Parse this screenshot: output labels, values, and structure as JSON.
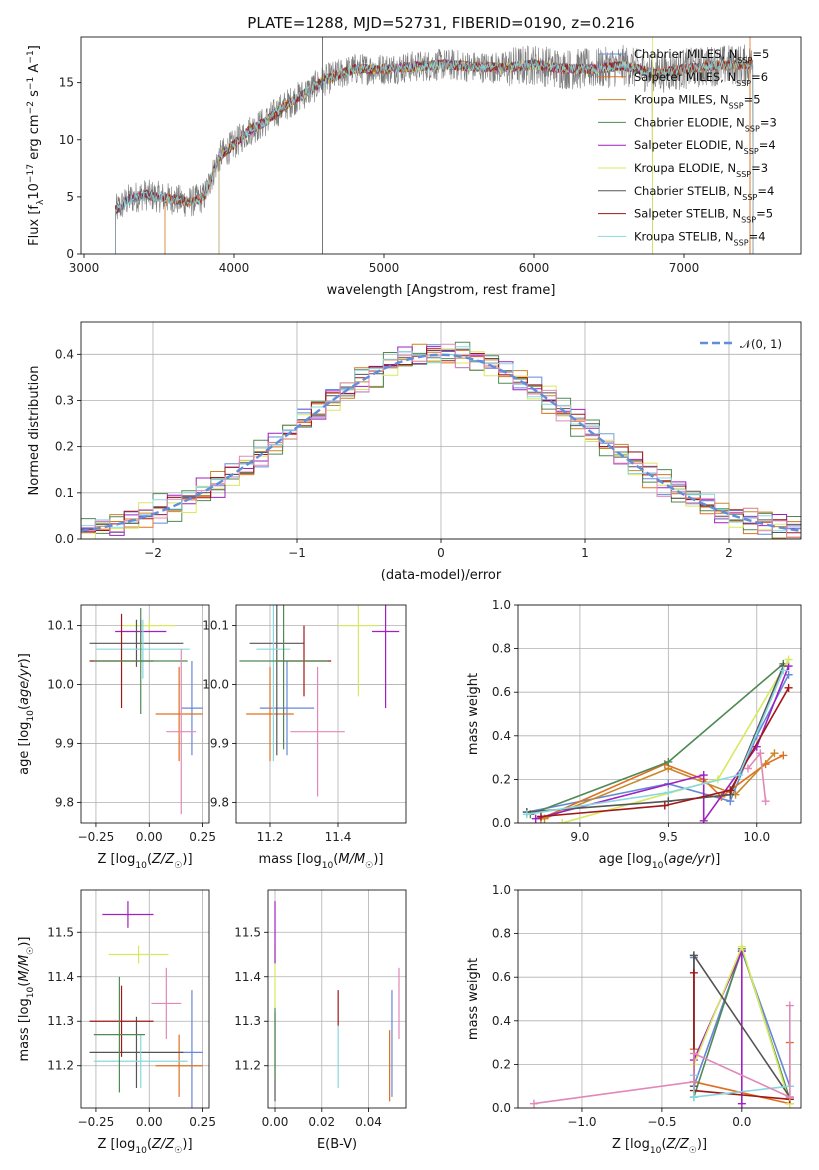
{
  "chart_data": [
    {
      "id": "spectrum",
      "type": "line",
      "title": "PLATE=1288, MJD=52731, FIBERID=0190, z=0.216",
      "xlabel": "wavelength [Angstrom, rest frame]",
      "ylabel": "Flux [f_λ 10^-17 erg cm^-2 s^-1 A^-1]",
      "xlim": [
        2980,
        7780
      ],
      "ylim": [
        0,
        19
      ],
      "xticks": [
        3000,
        4000,
        5000,
        6000,
        7000
      ],
      "yticks": [
        0,
        5,
        10,
        15
      ],
      "legend_position": "upper-right",
      "grid": false,
      "series": [
        {
          "name": "Chabrier MILES, N_SSP=5",
          "color": "#6688d8",
          "start": 3210,
          "end": 7460
        },
        {
          "name": "Salpeter MILES, N_SSP=6",
          "color": "#e07020",
          "start": 3540,
          "end": 7440
        },
        {
          "name": "Kroupa MILES, N_SSP=5",
          "color": "#c8882a",
          "start": 3540,
          "end": 7440
        },
        {
          "name": "Chabrier ELODIE, N_SSP=3",
          "color": "#4f8a55",
          "start": 3900,
          "end": 6790
        },
        {
          "name": "Salpeter ELODIE, N_SSP=4",
          "color": "#a020c0",
          "start": 3900,
          "end": 6790
        },
        {
          "name": "Kroupa ELODIE, N_SSP=3",
          "color": "#d8e860",
          "start": 3900,
          "end": 6790
        },
        {
          "name": "Chabrier STELIB, N_SSP=4",
          "color": "#555555",
          "start": 3210,
          "end": 7460
        },
        {
          "name": "Salpeter STELIB, N_SSP=5",
          "color": "#a01818",
          "start": 3210,
          "end": 7460
        },
        {
          "name": "Kroupa STELIB, N_SSP=4",
          "color": "#88d8e0",
          "start": 3210,
          "end": 7460
        }
      ],
      "continuum_points": {
        "x": [
          3210,
          3300,
          3400,
          3500,
          3600,
          3700,
          3800,
          3900,
          4000,
          4100,
          4200,
          4300,
          4400,
          4500,
          4600,
          4700,
          4800,
          5000,
          5200,
          5400,
          5600,
          5800,
          6000,
          6200,
          6400,
          6600,
          6800,
          7000,
          7200,
          7460
        ],
        "y": [
          3.8,
          4.8,
          5.2,
          5.0,
          4.8,
          4.5,
          5.0,
          8.5,
          9.6,
          10.8,
          11.5,
          12.6,
          13.5,
          14.3,
          15.2,
          15.7,
          16.2,
          16.2,
          16.4,
          16.6,
          16.4,
          16.3,
          16.6,
          16.2,
          16.2,
          16.5,
          15.8,
          16.2,
          16.5,
          16.6
        ]
      },
      "observed_noise": 1.4
    },
    {
      "id": "residuals",
      "type": "bar",
      "xlabel": "(data-model)/error",
      "ylabel": "Normed distribution",
      "xlim": [
        -2.5,
        2.5
      ],
      "ylim": [
        0,
        0.47
      ],
      "xticks": [
        -2,
        -1,
        0,
        1,
        2
      ],
      "yticks": [
        0.0,
        0.1,
        0.2,
        0.3,
        0.4
      ],
      "grid": true,
      "legend_position": "upper-right",
      "legend_label": "N(0,1)",
      "bin_width": 0.1,
      "reference_curve": {
        "color": "#5f8edb",
        "mean": 0,
        "sigma": 1
      },
      "hist_series": [
        {
          "color": "#6688d8",
          "jitter": [
            0.0,
            0.01,
            -0.01,
            0.02,
            0.0,
            -0.02,
            0.01
          ]
        },
        {
          "color": "#e07020",
          "jitter": [
            0.01,
            -0.01,
            0.0,
            0.01,
            -0.02,
            0.02,
            0.0
          ]
        },
        {
          "color": "#c8882a",
          "jitter": [
            -0.01,
            0.0,
            0.02,
            -0.01,
            0.01,
            0.0,
            -0.02
          ]
        },
        {
          "color": "#4f8a55",
          "jitter": [
            0.02,
            -0.02,
            0.01,
            0.0,
            -0.01,
            0.03,
            -0.03
          ]
        },
        {
          "color": "#a020c0",
          "jitter": [
            0.0,
            0.02,
            -0.02,
            0.01,
            0.0,
            -0.01,
            0.02
          ]
        },
        {
          "color": "#d8e860",
          "jitter": [
            -0.02,
            0.01,
            0.0,
            -0.02,
            0.02,
            -0.01,
            0.01
          ]
        },
        {
          "color": "#555555",
          "jitter": [
            0.01,
            0.0,
            -0.01,
            0.0,
            0.01,
            0.01,
            -0.01
          ]
        },
        {
          "color": "#a01818",
          "jitter": [
            0.0,
            -0.01,
            0.01,
            0.02,
            -0.01,
            0.0,
            0.01
          ]
        },
        {
          "color": "#88d8e0",
          "jitter": [
            0.01,
            0.02,
            0.0,
            -0.01,
            0.0,
            0.02,
            0.0
          ]
        },
        {
          "color": "#e088b8",
          "jitter": [
            -0.01,
            0.01,
            -0.01,
            0.0,
            0.02,
            -0.02,
            0.01
          ]
        }
      ]
    },
    {
      "id": "age-vs-Z",
      "type": "scatter",
      "xlabel": "Z [log10(Z/Z☉)]",
      "ylabel": "age [log10(age/yr)]",
      "xlim": [
        -0.32,
        0.28
      ],
      "ylim": [
        9.765,
        10.135
      ],
      "xticks": [
        -0.25,
        0.0,
        0.25
      ],
      "ytick_labels": [
        "9.8",
        "9.9",
        "10.0",
        "10.1"
      ],
      "yticks": [
        9.8,
        9.9,
        10.0,
        10.1
      ],
      "grid": true,
      "points": [
        {
          "color": "#6688d8",
          "x": 0.2,
          "xerr": 0.05,
          "y": 9.96,
          "yerr": 0.08
        },
        {
          "color": "#e07020",
          "x": 0.14,
          "xerr": 0.11,
          "y": 9.95,
          "yerr": 0.08
        },
        {
          "color": "#d8e860",
          "x": 0.0,
          "xerr": 0.12,
          "y": 10.1,
          "yerr": 0.01
        },
        {
          "color": "#a020c0",
          "x": -0.04,
          "xerr": 0.12,
          "y": 10.09,
          "yerr": 0.02
        },
        {
          "color": "#555555",
          "x": -0.06,
          "xerr": 0.22,
          "y": 10.07,
          "yerr": 0.04
        },
        {
          "color": "#88d8e0",
          "x": -0.03,
          "xerr": 0.22,
          "y": 10.06,
          "yerr": 0.05
        },
        {
          "color": "#a01818",
          "x": -0.13,
          "xerr": 0.15,
          "y": 10.04,
          "yerr": 0.08
        },
        {
          "color": "#4f8a55",
          "x": -0.04,
          "xerr": 0.22,
          "y": 10.04,
          "yerr": 0.09
        },
        {
          "color": "#e088b8",
          "x": 0.15,
          "xerr": 0.07,
          "y": 9.92,
          "yerr": 0.14
        }
      ]
    },
    {
      "id": "age-vs-mass",
      "type": "scatter",
      "xlabel": "mass [log10(M/M☉)]",
      "ylabel": "",
      "xlim": [
        11.1,
        11.6
      ],
      "ylim": [
        9.765,
        10.135
      ],
      "xticks": [
        11.2,
        11.4
      ],
      "xtick_labels": [
        "11.2",
        "11.4"
      ],
      "ytick_labels": [
        "9.8",
        "9.9",
        "10.0",
        "10.1"
      ],
      "yticks": [
        9.8,
        9.9,
        10.0,
        10.1
      ],
      "grid": true,
      "points": [
        {
          "color": "#6688d8",
          "x": 11.25,
          "xerr": 0.08,
          "y": 9.96,
          "yerr": 0.08
        },
        {
          "color": "#e07020",
          "x": 11.2,
          "xerr": 0.07,
          "y": 9.95,
          "yerr": 0.08
        },
        {
          "color": "#d8e860",
          "x": 11.46,
          "xerr": 0.06,
          "y": 10.1,
          "yerr": 0.12
        },
        {
          "color": "#a020c0",
          "x": 11.54,
          "xerr": 0.04,
          "y": 10.09,
          "yerr": 0.13
        },
        {
          "color": "#555555",
          "x": 11.22,
          "xerr": 0.08,
          "y": 10.07,
          "yerr": 0.19
        },
        {
          "color": "#88d8e0",
          "x": 11.21,
          "xerr": 0.05,
          "y": 10.06,
          "yerr": 0.19
        },
        {
          "color": "#a01818",
          "x": 11.3,
          "xerr": 0.08,
          "y": 10.04,
          "yerr": 0.06
        },
        {
          "color": "#4f8a55",
          "x": 11.24,
          "xerr": 0.13,
          "y": 10.04,
          "yerr": 0.15
        },
        {
          "color": "#e088b8",
          "x": 11.34,
          "xerr": 0.08,
          "y": 9.92,
          "yerr": 0.11
        }
      ]
    },
    {
      "id": "mass-weight-vs-age",
      "type": "line",
      "xlabel": "age [log10(age/yr)]",
      "ylabel": "mass weight",
      "xlim": [
        8.65,
        10.25
      ],
      "ylim": [
        0,
        1
      ],
      "xticks": [
        9.0,
        9.5,
        10.0
      ],
      "xtick_labels": [
        "9.0",
        "9.5",
        "10.0"
      ],
      "yticks": [
        0.0,
        0.2,
        0.4,
        0.6,
        0.8,
        1.0
      ],
      "ytick_labels": [
        "0.0",
        "0.2",
        "0.4",
        "0.6",
        "0.8",
        "1.0"
      ],
      "grid": true,
      "series": [
        {
          "color": "#6688d8",
          "x": [
            8.7,
            9.5,
            9.85,
            10.0,
            10.18
          ],
          "y": [
            0.05,
            0.18,
            0.1,
            0.4,
            0.68
          ]
        },
        {
          "color": "#e07020",
          "x": [
            8.78,
            9.48,
            9.7,
            9.8,
            10.05,
            10.15
          ],
          "y": [
            0.02,
            0.27,
            0.2,
            0.12,
            0.27,
            0.31
          ]
        },
        {
          "color": "#c8882a",
          "x": [
            8.8,
            9.5,
            9.88,
            10.1
          ],
          "y": [
            0.02,
            0.25,
            0.13,
            0.32
          ]
        },
        {
          "color": "#4f8a55",
          "x": [
            8.72,
            9.5,
            10.15
          ],
          "y": [
            0.04,
            0.28,
            0.73
          ]
        },
        {
          "color": "#a020c0",
          "x": [
            8.75,
            9.7,
            9.7,
            10.0,
            10.18
          ],
          "y": [
            0.02,
            0.22,
            0.01,
            0.35,
            0.72
          ]
        },
        {
          "color": "#d8e860",
          "x": [
            8.9,
            9.78,
            10.18
          ],
          "y": [
            0.0,
            0.2,
            0.75
          ]
        },
        {
          "color": "#555555",
          "x": [
            8.7,
            9.5,
            9.85,
            10.15
          ],
          "y": [
            0.05,
            0.1,
            0.13,
            0.72
          ]
        },
        {
          "color": "#a01818",
          "x": [
            8.78,
            9.48,
            9.85,
            10.18
          ],
          "y": [
            0.03,
            0.08,
            0.15,
            0.62
          ]
        },
        {
          "color": "#88d8e0",
          "x": [
            8.7,
            9.5,
            9.9,
            10.15
          ],
          "y": [
            0.04,
            0.14,
            0.22,
            0.7
          ]
        },
        {
          "color": "#e088b8",
          "x": [
            9.95,
            10.02,
            10.05
          ],
          "y": [
            0.25,
            0.32,
            0.1
          ]
        }
      ]
    },
    {
      "id": "mass-vs-Z",
      "type": "scatter",
      "xlabel": "Z [log10(Z/Z☉)]",
      "ylabel": "mass [log10(M/M☉)]",
      "xlim": [
        -0.32,
        0.28
      ],
      "ylim": [
        11.105,
        11.595
      ],
      "xticks": [
        -0.25,
        0.0,
        0.25
      ],
      "yticks": [
        11.2,
        11.3,
        11.4,
        11.5
      ],
      "ytick_labels": [
        "11.2",
        "11.3",
        "11.4",
        "11.5"
      ],
      "grid": true,
      "points": [
        {
          "color": "#6688d8",
          "x": 0.2,
          "xerr": 0.05,
          "y": 11.23,
          "yerr": 0.14
        },
        {
          "color": "#e07020",
          "x": 0.14,
          "xerr": 0.11,
          "y": 11.2,
          "yerr": 0.07
        },
        {
          "color": "#d8e860",
          "x": -0.05,
          "xerr": 0.14,
          "y": 11.45,
          "yerr": 0.02
        },
        {
          "color": "#a020c0",
          "x": -0.1,
          "xerr": 0.12,
          "y": 11.54,
          "yerr": 0.03
        },
        {
          "color": "#555555",
          "x": -0.06,
          "xerr": 0.22,
          "y": 11.23,
          "yerr": 0.08
        },
        {
          "color": "#88d8e0",
          "x": -0.04,
          "xerr": 0.22,
          "y": 11.21,
          "yerr": 0.06
        },
        {
          "color": "#a01818",
          "x": -0.13,
          "xerr": 0.15,
          "y": 11.3,
          "yerr": 0.08
        },
        {
          "color": "#4f8a55",
          "x": -0.14,
          "xerr": 0.12,
          "y": 11.27,
          "yerr": 0.13
        },
        {
          "color": "#e088b8",
          "x": 0.08,
          "xerr": 0.07,
          "y": 11.34,
          "yerr": 0.08
        }
      ]
    },
    {
      "id": "mass-vs-EBV",
      "type": "scatter",
      "xlabel": "E(B-V)",
      "ylabel": "",
      "xlim": [
        -0.003,
        0.056
      ],
      "ylim": [
        11.105,
        11.595
      ],
      "xticks": [
        0.0,
        0.02,
        0.04
      ],
      "xtick_labels": [
        "0.00",
        "0.02",
        "0.04"
      ],
      "yticks": [
        11.2,
        11.3,
        11.4,
        11.5
      ],
      "ytick_labels": [
        "11.2",
        "11.3",
        "11.4",
        "11.5"
      ],
      "grid": true,
      "points": [
        {
          "color": "#6688d8",
          "x": 0.05,
          "y": 11.25,
          "yerr": 0.12
        },
        {
          "color": "#e07020",
          "x": 0.049,
          "y": 11.2,
          "yerr": 0.08
        },
        {
          "color": "#d8e860",
          "x": 0.0,
          "y": 11.4,
          "yerr": 0.07
        },
        {
          "color": "#a020c0",
          "x": 0.0,
          "y": 11.5,
          "yerr": 0.07
        },
        {
          "color": "#555555",
          "x": 0.0,
          "y": 11.22,
          "yerr": 0.1
        },
        {
          "color": "#88d8e0",
          "x": 0.027,
          "y": 11.22,
          "yerr": 0.07
        },
        {
          "color": "#a01818",
          "x": 0.027,
          "y": 11.33,
          "yerr": 0.04
        },
        {
          "color": "#4f8a55",
          "x": 0.0,
          "y": 11.25,
          "yerr": 0.08
        },
        {
          "color": "#e088b8",
          "x": 0.053,
          "y": 11.34,
          "yerr": 0.08
        }
      ]
    },
    {
      "id": "mass-weight-vs-Z",
      "type": "line",
      "xlabel": "Z [log10(Z/Z☉)]",
      "ylabel": "mass weight",
      "xlim": [
        -1.4,
        0.37
      ],
      "ylim": [
        0,
        1
      ],
      "xticks": [
        -1.0,
        -0.5,
        0.0
      ],
      "xtick_labels": [
        "−1.0",
        "−0.5",
        "0.0"
      ],
      "yticks": [
        0.0,
        0.2,
        0.4,
        0.6,
        0.8,
        1.0
      ],
      "ytick_labels": [
        "0.0",
        "0.2",
        "0.4",
        "0.6",
        "0.8",
        "1.0"
      ],
      "grid": true,
      "series": [
        {
          "color": "#6688d8",
          "x": [
            -0.3,
            -0.3,
            0.0,
            0.3
          ],
          "y": [
            0.69,
            0.1,
            0.72,
            0.1
          ]
        },
        {
          "color": "#e07020",
          "x": [
            -0.3,
            -0.3,
            0.3,
            0.3
          ],
          "y": [
            0.27,
            0.12,
            0.02,
            0.3
          ]
        },
        {
          "color": "#4f8a55",
          "x": [
            -0.3,
            -0.3,
            0.0,
            0.3
          ],
          "y": [
            0.7,
            0.05,
            0.73,
            0.04
          ]
        },
        {
          "color": "#a020c0",
          "x": [
            -0.3,
            0.0,
            0.0
          ],
          "y": [
            0.22,
            0.72,
            0.02
          ]
        },
        {
          "color": "#d8e860",
          "x": [
            -0.3,
            0.0,
            0.3
          ],
          "y": [
            0.2,
            0.74,
            0.02
          ]
        },
        {
          "color": "#555555",
          "x": [
            -0.3,
            -0.3,
            0.3
          ],
          "y": [
            0.1,
            0.7,
            0.05
          ]
        },
        {
          "color": "#a01818",
          "x": [
            -0.3,
            -0.3,
            0.3
          ],
          "y": [
            0.62,
            0.08,
            0.04
          ]
        },
        {
          "color": "#88d8e0",
          "x": [
            -0.3,
            -0.3,
            0.3
          ],
          "y": [
            0.15,
            0.05,
            0.1
          ]
        },
        {
          "color": "#e088b8",
          "x": [
            -1.3,
            -0.3,
            -0.3,
            0.3,
            0.3
          ],
          "y": [
            0.02,
            0.12,
            0.25,
            0.05,
            0.47
          ]
        }
      ]
    }
  ]
}
